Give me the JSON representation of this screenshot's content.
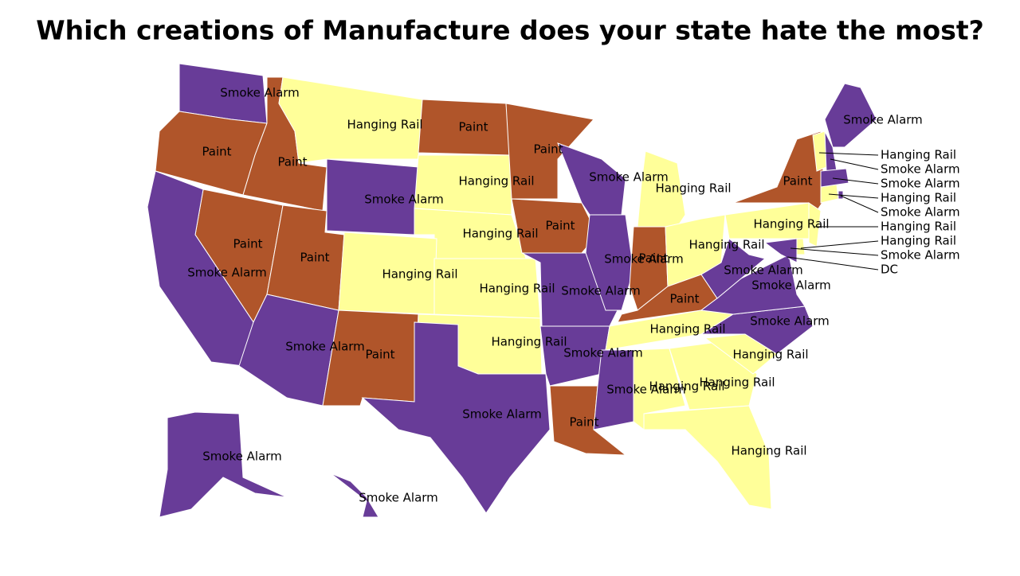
{
  "title": "Which creations of Manufacture does your state hate the most?",
  "regions": [
    {
      "label": "Smoke Alarm",
      "color": "#683c98"
    },
    {
      "label": "Paint",
      "color": "#b0552a"
    },
    {
      "label": "Paint",
      "color": "#b0552a"
    },
    {
      "label": "Hanging Rail",
      "color": "#ffff99"
    },
    {
      "label": "Smoke Alarm",
      "color": "#683c98"
    },
    {
      "label": "Paint",
      "color": "#b0552a"
    },
    {
      "label": "Hanging Rail",
      "color": "#ffff99"
    },
    {
      "label": "Hanging Rail",
      "color": "#ffff99"
    },
    {
      "label": "Paint",
      "color": "#b0552a"
    },
    {
      "label": "Paint",
      "color": "#b0552a"
    },
    {
      "label": "Paint",
      "color": "#b0552a"
    },
    {
      "label": "Smoke Alarm",
      "color": "#683c98"
    },
    {
      "label": "Paint",
      "color": "#b0552a"
    },
    {
      "label": "Hanging Rail",
      "color": "#ffff99"
    },
    {
      "label": "Smoke Alarm",
      "color": "#683c98"
    },
    {
      "label": "Paint",
      "color": "#b0552a"
    },
    {
      "label": "Hanging Rail",
      "color": "#ffff99"
    },
    {
      "label": "Hanging Rail",
      "color": "#ffff99"
    },
    {
      "label": "Smoke Alarm",
      "color": "#683c98"
    },
    {
      "label": "Smoke Alarm",
      "color": "#683c98"
    },
    {
      "label": "Smoke Alarm",
      "color": "#683c98"
    },
    {
      "label": "Paint",
      "color": "#b0552a"
    },
    {
      "label": "Smoke Alarm",
      "color": "#683c98"
    },
    {
      "label": "Smoke Alarm",
      "color": "#683c98"
    },
    {
      "label": "Hanging Rail",
      "color": "#ffff99"
    },
    {
      "label": "Paint",
      "color": "#b0552a"
    },
    {
      "label": "Hanging Rail",
      "color": "#ffff99"
    },
    {
      "label": "Paint",
      "color": "#b0552a"
    },
    {
      "label": "Hanging Rail",
      "color": "#ffff99"
    },
    {
      "label": "Smoke Alarm",
      "color": "#683c98"
    },
    {
      "label": "Hanging Rail",
      "color": "#ffff99"
    },
    {
      "label": "Hanging Rail",
      "color": "#ffff99"
    },
    {
      "label": "Hanging Rail",
      "color": "#ffff99"
    },
    {
      "label": "Hanging Rail",
      "color": "#ffff99"
    },
    {
      "label": "Smoke Alarm",
      "color": "#683c98"
    },
    {
      "label": "Smoke Alarm",
      "color": "#683c98"
    },
    {
      "label": "Smoke Alarm",
      "color": "#683c98"
    },
    {
      "label": "Hanging Rail",
      "color": "#ffff99"
    },
    {
      "label": "Paint",
      "color": "#b0552a"
    },
    {
      "label": "Smoke Alarm",
      "color": "#683c98"
    },
    {
      "label": "Smoke Alarm",
      "color": "#683c98"
    },
    {
      "label": "Smoke Alarm",
      "color": "#683c98"
    },
    {
      "label": "Smoke Alarm",
      "color": "#683c98"
    },
    {
      "label": "Hanging Rail",
      "color": "#ffff99"
    },
    {
      "label": "Smoke Alarm",
      "color": "#683c98"
    },
    {
      "label": "Hanging Rail",
      "color": "#ffff99"
    },
    {
      "label": "Smoke Alarm",
      "color": "#683c98"
    },
    {
      "label": "Smoke Alarm",
      "color": "#683c98"
    },
    {
      "label": "Hanging Rail",
      "color": "#ffff99"
    },
    {
      "label": "Hanging Rail",
      "color": "#ffff99"
    },
    {
      "label": "DC",
      "color": "#683c98"
    }
  ]
}
